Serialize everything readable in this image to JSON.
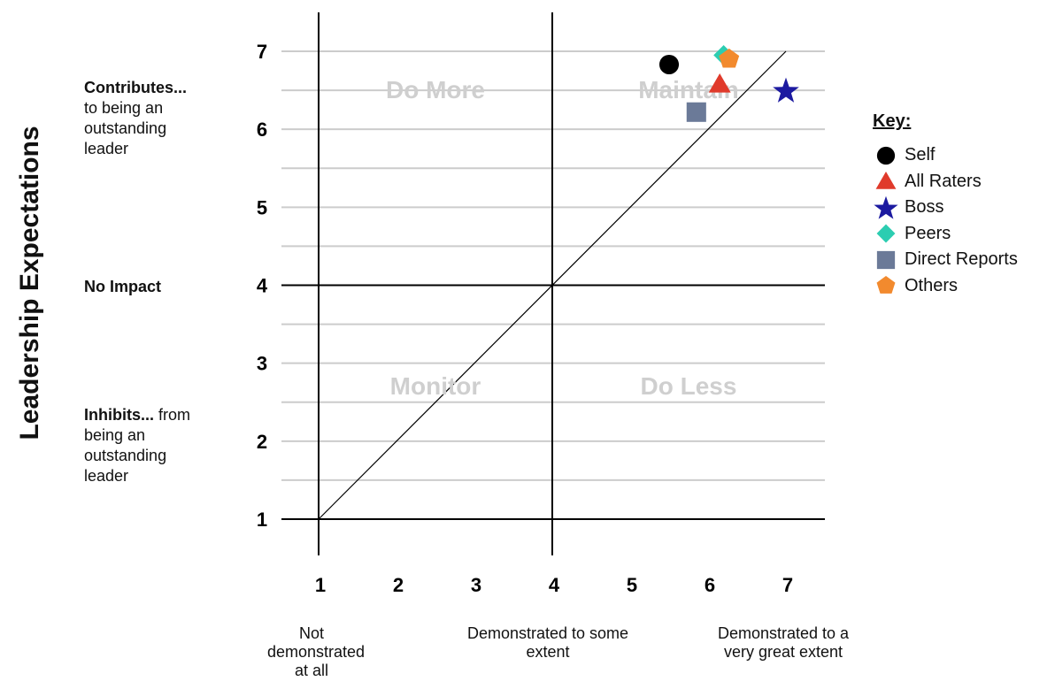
{
  "chart_data": {
    "type": "scatter",
    "ylabel": "Leadership Expectations",
    "xlim": [
      1,
      7
    ],
    "ylim": [
      1,
      7
    ],
    "x_ticks": [
      1,
      2,
      3,
      4,
      5,
      6,
      7
    ],
    "y_ticks": [
      1,
      2,
      3,
      4,
      5,
      6,
      7
    ],
    "grid": true,
    "reference_line": {
      "from": [
        1,
        1
      ],
      "to": [
        7,
        7
      ]
    },
    "quadrant_dividers": {
      "x": 4,
      "y": 4
    },
    "quadrants": [
      {
        "label": "Do More",
        "x": 2.5,
        "y": 6.4
      },
      {
        "label": "Maintain",
        "x": 5.75,
        "y": 6.4
      },
      {
        "label": "Monitor",
        "x": 2.5,
        "y": 2.6
      },
      {
        "label": "Do Less",
        "x": 5.75,
        "y": 2.6
      }
    ],
    "y_annotations": [
      {
        "bold": "Contributes...",
        "text": "to being an outstanding leader"
      },
      {
        "bold": "No Impact",
        "text": ""
      },
      {
        "bold": "Inhibits...",
        "text": "from being an outstanding leader"
      }
    ],
    "x_annotations": [
      {
        "text": "Not demonstrated at all"
      },
      {
        "text": "Demonstrated to some extent"
      },
      {
        "text": "Demonstrated to a very great extent"
      }
    ],
    "legend": {
      "title": "Key:",
      "placement": "right"
    },
    "series": [
      {
        "name": "Self",
        "marker": "circle",
        "color": "#000000",
        "x": 5.5,
        "y": 6.83
      },
      {
        "name": "All Raters",
        "marker": "triangle",
        "color": "#e03a2b",
        "x": 6.15,
        "y": 6.58
      },
      {
        "name": "Boss",
        "marker": "star",
        "color": "#1c1aa0",
        "x": 7.0,
        "y": 6.5
      },
      {
        "name": "Peers",
        "marker": "diamond",
        "color": "#2ccdb1",
        "x": 6.2,
        "y": 6.95
      },
      {
        "name": "Direct Reports",
        "marker": "square",
        "color": "#6b7a98",
        "x": 5.85,
        "y": 6.22
      },
      {
        "name": "Others",
        "marker": "pentagon",
        "color": "#f28a2e",
        "x": 6.27,
        "y": 6.9
      }
    ]
  }
}
